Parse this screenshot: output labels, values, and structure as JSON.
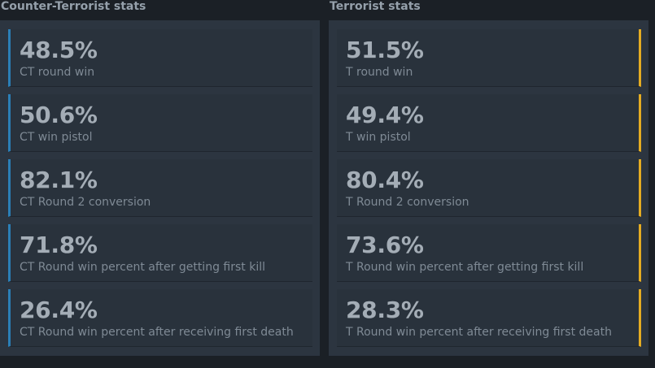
{
  "ct": {
    "title": "Counter-Terrorist stats",
    "accent_color": "#2b7fb7",
    "stats": [
      {
        "value": "48.5%",
        "label": "CT round win"
      },
      {
        "value": "50.6%",
        "label": "CT win pistol"
      },
      {
        "value": "82.1%",
        "label": "CT Round 2 conversion"
      },
      {
        "value": "71.8%",
        "label": "CT Round win percent after getting first kill"
      },
      {
        "value": "26.4%",
        "label": "CT Round win percent after receiving first death"
      }
    ]
  },
  "t": {
    "title": "Terrorist stats",
    "accent_color": "#e5ac22",
    "stats": [
      {
        "value": "51.5%",
        "label": "T round win"
      },
      {
        "value": "49.4%",
        "label": "T win pistol"
      },
      {
        "value": "80.4%",
        "label": "T Round 2 conversion"
      },
      {
        "value": "73.6%",
        "label": "T Round win percent after getting first kill"
      },
      {
        "value": "28.3%",
        "label": "T Round win percent after receiving first death"
      }
    ]
  }
}
